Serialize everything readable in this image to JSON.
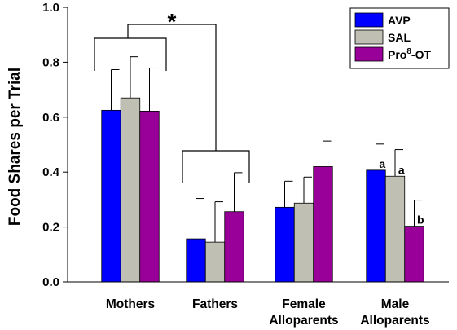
{
  "chart_data": {
    "type": "bar",
    "ylabel": "Food Shares per Trial",
    "xlabel": "",
    "ylim": [
      0,
      1.0
    ],
    "yticks": [
      "0.0",
      "0.2",
      "0.4",
      "0.6",
      "0.8",
      "1.0"
    ],
    "categories": [
      [
        "Mothers"
      ],
      [
        "Fathers"
      ],
      [
        "Female",
        "Alloparents"
      ],
      [
        "Male",
        "Alloparents"
      ]
    ],
    "series": [
      {
        "name": "AVP",
        "color": "#0000ff",
        "values": [
          0.625,
          0.157,
          0.272,
          0.407
        ],
        "errors": [
          0.148,
          0.147,
          0.095,
          0.095
        ]
      },
      {
        "name": "SAL",
        "color": "#bfbfb3",
        "values": [
          0.67,
          0.145,
          0.287,
          0.385
        ],
        "errors": [
          0.15,
          0.147,
          0.095,
          0.097
        ]
      },
      {
        "name": "Pro8-OT",
        "legend_base": "Pro",
        "legend_sup": "8",
        "legend_suffix": "-OT",
        "color": "#990099",
        "values": [
          0.622,
          0.256,
          0.42,
          0.203
        ],
        "errors": [
          0.157,
          0.142,
          0.093,
          0.095
        ]
      }
    ],
    "annotations": {
      "significance": "*",
      "letters": [
        {
          "series": 0,
          "category": 3,
          "text": "a"
        },
        {
          "series": 1,
          "category": 3,
          "text": "a"
        },
        {
          "series": 2,
          "category": 3,
          "text": "b"
        }
      ]
    },
    "legend": "top-right",
    "grid": false
  }
}
